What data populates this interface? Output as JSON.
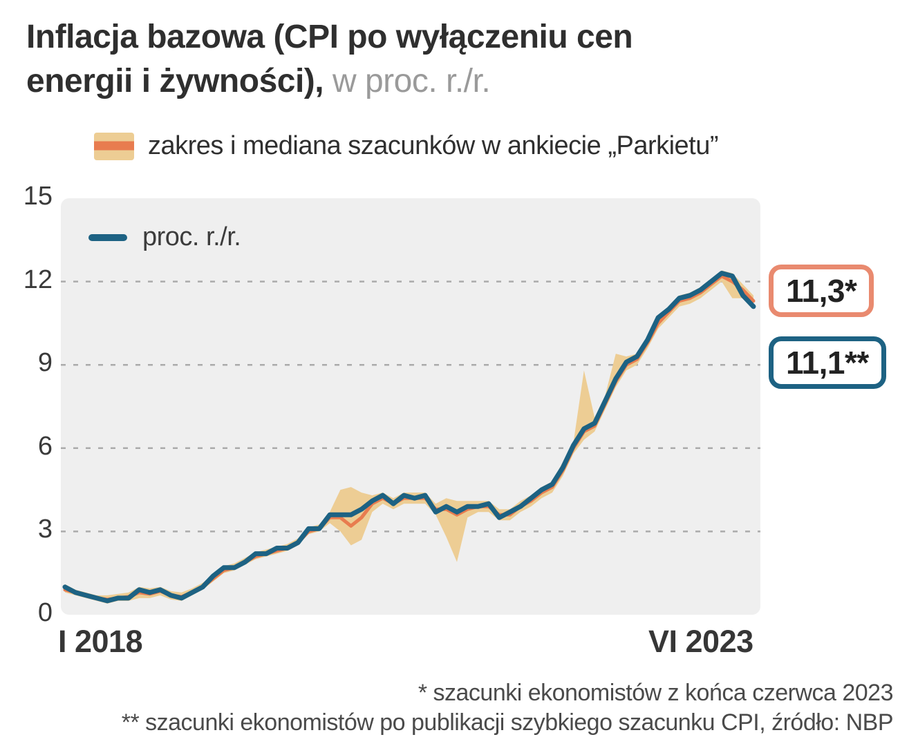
{
  "title": {
    "bold_line1": "Inflacja bazowa (CPI po wyłączeniu cen",
    "bold_line2": "energii i żywności),",
    "subtitle": " w proc. r./r."
  },
  "legend": {
    "band_label": "zakres i mediana szacunków w ankiecie „Parkietu”",
    "line_label": "proc. r./r."
  },
  "badges": {
    "estimate_label": "11,3*",
    "actual_label": "11,1**"
  },
  "axis": {
    "y_ticks": [
      15,
      12,
      9,
      6,
      3,
      0
    ],
    "x_start_label": "I 2018",
    "x_end_label": "VI 2023"
  },
  "footnotes": {
    "line1": "* szacunki ekonomistów z końca czerwca 2023",
    "line2": "** szacunki ekonomistów po publikacji szybkiego szacunku CPI, źródło: NBP"
  },
  "colors": {
    "line": "#1d6283",
    "median": "#e87c4f",
    "band": "#edcd94",
    "badge_estimate_border": "#e98a6f",
    "badge_actual_border": "#1d6283",
    "plot_bg": "#efefef",
    "grid": "#ababab"
  },
  "chart_data": {
    "type": "line",
    "title": "Inflacja bazowa (CPI po wyłączeniu cen energii i żywności), w proc. r./r.",
    "x_unit": "monthly",
    "x_start": "I 2018",
    "x_end": "VI 2023",
    "ylim": [
      0,
      15
    ],
    "y_ticks": [
      0,
      3,
      6,
      9,
      12,
      15
    ],
    "grid": "dashed-horizontal",
    "legend_position": "top-left-inside",
    "annotations": [
      {
        "label": "11,3*",
        "value": 11.3,
        "series": "median",
        "note": "szacunki ekonomistów z końca czerwca 2023"
      },
      {
        "label": "11,1**",
        "value": 11.1,
        "series": "actual",
        "note": "szacunki ekonomistów po publikacji szybkiego szacunku CPI, źródło: NBP"
      }
    ],
    "series": [
      {
        "key": "actual",
        "name": "proc. r./r.",
        "values": [
          1.0,
          0.8,
          0.7,
          0.6,
          0.5,
          0.6,
          0.6,
          0.9,
          0.8,
          0.9,
          0.7,
          0.6,
          0.8,
          1.0,
          1.4,
          1.7,
          1.7,
          1.9,
          2.2,
          2.2,
          2.4,
          2.4,
          2.6,
          3.1,
          3.1,
          3.6,
          3.6,
          3.6,
          3.8,
          4.1,
          4.3,
          4.0,
          4.3,
          4.2,
          4.3,
          3.7,
          3.9,
          3.7,
          3.9,
          3.9,
          4.0,
          3.5,
          3.7,
          3.9,
          4.2,
          4.5,
          4.7,
          5.3,
          6.1,
          6.7,
          6.9,
          7.7,
          8.5,
          9.1,
          9.3,
          9.9,
          10.7,
          11.0,
          11.4,
          11.5,
          11.7,
          12.0,
          12.3,
          12.2,
          11.5,
          11.1
        ]
      },
      {
        "key": "median",
        "name": "mediana szacunków w ankiecie „Parkietu”",
        "values": [
          0.9,
          0.8,
          0.7,
          0.6,
          0.55,
          0.6,
          0.65,
          0.8,
          0.75,
          0.85,
          0.7,
          0.65,
          0.8,
          1.0,
          1.3,
          1.6,
          1.7,
          1.9,
          2.1,
          2.2,
          2.3,
          2.4,
          2.6,
          3.0,
          3.1,
          3.5,
          3.5,
          3.2,
          3.5,
          4.0,
          4.2,
          4.0,
          4.2,
          4.2,
          4.2,
          3.8,
          3.8,
          3.6,
          3.8,
          3.9,
          3.9,
          3.6,
          3.6,
          3.9,
          4.1,
          4.4,
          4.6,
          5.2,
          6.0,
          6.6,
          6.8,
          7.6,
          8.4,
          9.0,
          9.2,
          9.8,
          10.5,
          10.9,
          11.3,
          11.4,
          11.6,
          11.9,
          12.2,
          12.0,
          11.7,
          11.3
        ]
      },
      {
        "key": "lower",
        "name": "zakres szacunków — dół",
        "values": [
          0.8,
          0.7,
          0.6,
          0.5,
          0.4,
          0.5,
          0.5,
          0.6,
          0.6,
          0.7,
          0.55,
          0.5,
          0.7,
          0.9,
          1.2,
          1.5,
          1.6,
          1.8,
          2.0,
          2.1,
          2.2,
          2.3,
          2.5,
          2.9,
          3.0,
          3.3,
          3.0,
          2.5,
          2.7,
          3.7,
          4.0,
          3.8,
          4.0,
          4.0,
          4.0,
          3.6,
          2.8,
          1.9,
          3.5,
          3.7,
          3.7,
          3.4,
          3.4,
          3.7,
          3.9,
          4.2,
          4.4,
          5.0,
          5.8,
          6.3,
          6.6,
          7.4,
          8.2,
          8.8,
          9.0,
          9.6,
          10.3,
          10.7,
          11.1,
          11.2,
          11.4,
          11.7,
          12.0,
          11.4,
          11.4,
          11.0
        ]
      },
      {
        "key": "upper",
        "name": "zakres szacunków — góra",
        "values": [
          1.1,
          0.9,
          0.8,
          0.7,
          0.7,
          0.75,
          0.8,
          1.0,
          0.95,
          1.0,
          0.85,
          0.8,
          0.95,
          1.15,
          1.45,
          1.75,
          1.85,
          2.05,
          2.25,
          2.35,
          2.45,
          2.55,
          2.75,
          3.15,
          3.25,
          3.7,
          4.5,
          4.6,
          4.4,
          4.3,
          4.4,
          4.2,
          4.4,
          4.4,
          4.4,
          4.0,
          4.2,
          4.1,
          4.1,
          4.1,
          4.1,
          3.8,
          3.8,
          4.1,
          4.3,
          4.6,
          4.8,
          5.5,
          6.2,
          8.8,
          7.1,
          7.9,
          9.4,
          9.3,
          9.4,
          10.0,
          10.7,
          11.1,
          11.5,
          11.6,
          11.8,
          12.1,
          12.4,
          12.3,
          11.9,
          11.5
        ]
      }
    ]
  }
}
